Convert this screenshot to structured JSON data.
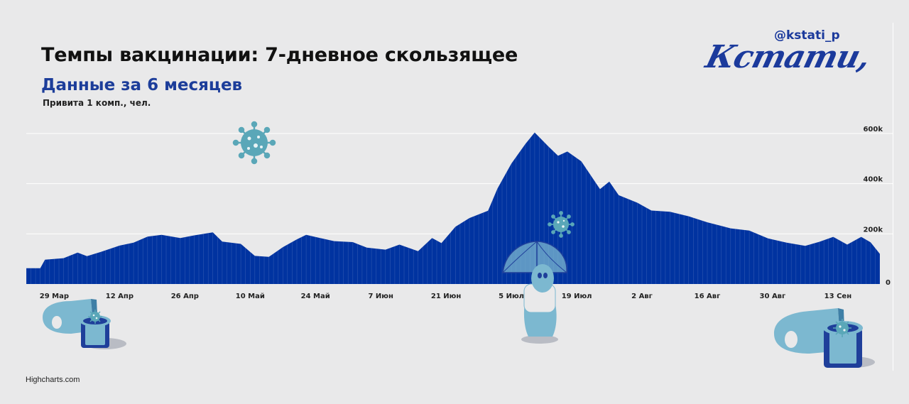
{
  "header": {
    "title": "Темпы вакцинации: 7-дневное скользящее",
    "subtitle": "Данные за 6 месяцев",
    "note": "Привита 1 комп., чел."
  },
  "brand": {
    "handle": "@kstati_p",
    "logo_text": "Кстати,"
  },
  "credits": "Highcharts.com",
  "colors": {
    "bar": "#0033a0",
    "accent": "#1b3a9c",
    "background": "#e9e9ea",
    "gridline": "#ffffff",
    "virus": "#5aa7b8"
  },
  "icons": [
    "virus-icon",
    "virus-icon",
    "vaccine-bottle-icon",
    "person-umbrella-icon",
    "vaccine-bottle-icon"
  ],
  "chart_data": {
    "type": "area",
    "title": "Темпы вакцинации: 7-дневное скользящее",
    "subtitle": "Данные за 6 месяцев",
    "ylabel": "Привита 1 комп., чел.",
    "ylim": [
      0,
      600000
    ],
    "yticks": [
      0,
      200000,
      400000,
      600000
    ],
    "ytick_labels": [
      "0",
      "200k",
      "400k",
      "600k"
    ],
    "xticks": [
      "29 Мар",
      "12 Апр",
      "26 Апр",
      "10 Май",
      "24 Май",
      "7 Июн",
      "21 Июн",
      "5 Июл",
      "19 Июл",
      "2 Авг",
      "16 Авг",
      "30 Авг",
      "13 Сен"
    ],
    "grid": true,
    "x_start": "2021-03-23",
    "x_end": "2021-09-22",
    "points": [
      [
        "2021-03-23",
        63000
      ],
      [
        "2021-03-26",
        63000
      ],
      [
        "2021-03-27",
        97000
      ],
      [
        "2021-03-31",
        103000
      ],
      [
        "2021-04-03",
        125000
      ],
      [
        "2021-04-05",
        111000
      ],
      [
        "2021-04-08",
        128000
      ],
      [
        "2021-04-12",
        153000
      ],
      [
        "2021-04-15",
        165000
      ],
      [
        "2021-04-18",
        189000
      ],
      [
        "2021-04-21",
        196000
      ],
      [
        "2021-04-25",
        183000
      ],
      [
        "2021-04-28",
        194000
      ],
      [
        "2021-05-02",
        206000
      ],
      [
        "2021-05-04",
        169000
      ],
      [
        "2021-05-08",
        160000
      ],
      [
        "2021-05-11",
        112000
      ],
      [
        "2021-05-14",
        108000
      ],
      [
        "2021-05-17",
        147000
      ],
      [
        "2021-05-20",
        178000
      ],
      [
        "2021-05-22",
        196000
      ],
      [
        "2021-05-25",
        183000
      ],
      [
        "2021-05-28",
        171000
      ],
      [
        "2021-06-01",
        167000
      ],
      [
        "2021-06-04",
        145000
      ],
      [
        "2021-06-08",
        137000
      ],
      [
        "2021-06-11",
        157000
      ],
      [
        "2021-06-15",
        131000
      ],
      [
        "2021-06-18",
        183000
      ],
      [
        "2021-06-20",
        163000
      ],
      [
        "2021-06-23",
        228000
      ],
      [
        "2021-06-26",
        263000
      ],
      [
        "2021-06-30",
        292000
      ],
      [
        "2021-07-02",
        380000
      ],
      [
        "2021-07-05",
        480000
      ],
      [
        "2021-07-08",
        558000
      ],
      [
        "2021-07-10",
        604000
      ],
      [
        "2021-07-13",
        547000
      ],
      [
        "2021-07-15",
        511000
      ],
      [
        "2021-07-17",
        528000
      ],
      [
        "2021-07-20",
        489000
      ],
      [
        "2021-07-24",
        378000
      ],
      [
        "2021-07-26",
        408000
      ],
      [
        "2021-07-28",
        354000
      ],
      [
        "2021-08-01",
        324000
      ],
      [
        "2021-08-04",
        293000
      ],
      [
        "2021-08-08",
        288000
      ],
      [
        "2021-08-12",
        270000
      ],
      [
        "2021-08-16",
        246000
      ],
      [
        "2021-08-21",
        222000
      ],
      [
        "2021-08-25",
        213000
      ],
      [
        "2021-08-29",
        182000
      ],
      [
        "2021-09-02",
        165000
      ],
      [
        "2021-09-06",
        152000
      ],
      [
        "2021-09-09",
        168000
      ],
      [
        "2021-09-12",
        188000
      ],
      [
        "2021-09-15",
        157000
      ],
      [
        "2021-09-18",
        188000
      ],
      [
        "2021-09-20",
        166000
      ],
      [
        "2021-09-22",
        120000
      ]
    ]
  }
}
